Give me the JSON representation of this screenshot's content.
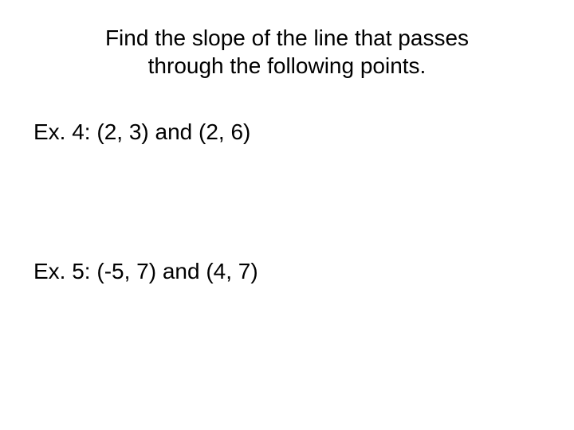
{
  "title": {
    "line1": "Find the slope of the line that passes",
    "line2": "through the following points."
  },
  "examples": {
    "ex4": "Ex. 4: (2, 3) and (2, 6)",
    "ex5": "Ex. 5: (-5, 7) and (4, 7)"
  },
  "styling": {
    "background_color": "#ffffff",
    "text_color": "#000000",
    "title_fontsize": 28,
    "body_fontsize": 28,
    "font_family": "Arial"
  }
}
